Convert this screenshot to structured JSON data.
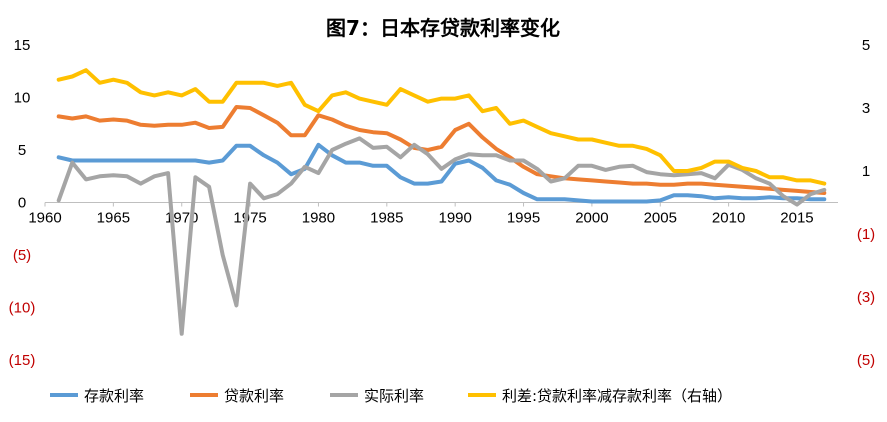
{
  "chart_data": {
    "type": "line",
    "title": "图7：日本存贷款利率变化",
    "x": [
      1961,
      1962,
      1963,
      1964,
      1965,
      1966,
      1967,
      1968,
      1969,
      1970,
      1971,
      1972,
      1973,
      1974,
      1975,
      1976,
      1977,
      1978,
      1979,
      1980,
      1981,
      1982,
      1983,
      1984,
      1985,
      1986,
      1987,
      1988,
      1989,
      1990,
      1991,
      1992,
      1993,
      1994,
      1995,
      1996,
      1997,
      1998,
      1999,
      2000,
      2001,
      2002,
      2003,
      2004,
      2005,
      2006,
      2007,
      2008,
      2009,
      2010,
      2011,
      2012,
      2013,
      2014,
      2015,
      2016,
      2017
    ],
    "xlim": [
      1960,
      2018
    ],
    "x_ticks": [
      1960,
      1965,
      1970,
      1975,
      1980,
      1985,
      1990,
      1995,
      2000,
      2005,
      2010,
      2015
    ],
    "x_tick_labels": [
      "1960",
      "1965",
      "1970",
      "1975",
      "1980",
      "1985",
      "1990",
      "1995",
      "2000",
      "2005",
      "2010",
      "2015"
    ],
    "ylim_left": [
      -15,
      15
    ],
    "y_ticks_left": [
      15,
      10,
      5,
      0,
      -5,
      -10,
      -15
    ],
    "y_tick_labels_left": [
      "15",
      "10",
      "5",
      "0",
      "(5)",
      "(10)",
      "(15)"
    ],
    "ylim_right": [
      -5,
      5
    ],
    "y_ticks_right": [
      5,
      3,
      1,
      -1,
      -3,
      -5
    ],
    "y_tick_labels_right": [
      "5",
      "3",
      "1",
      "(1)",
      "(3)",
      "(5)"
    ],
    "series": [
      {
        "name": "存款利率",
        "axis": "left",
        "color": "#5b9bd5",
        "values": [
          4.3,
          4.0,
          4.0,
          4.0,
          4.0,
          4.0,
          4.0,
          4.0,
          4.0,
          4.0,
          4.0,
          3.8,
          4.0,
          5.4,
          5.4,
          4.5,
          3.8,
          2.7,
          3.2,
          5.5,
          4.5,
          3.8,
          3.8,
          3.5,
          3.5,
          2.4,
          1.8,
          1.8,
          2.0,
          3.7,
          4.0,
          3.3,
          2.1,
          1.7,
          0.9,
          0.3,
          0.3,
          0.3,
          0.2,
          0.1,
          0.1,
          0.1,
          0.1,
          0.1,
          0.2,
          0.7,
          0.7,
          0.6,
          0.4,
          0.5,
          0.4,
          0.4,
          0.5,
          0.4,
          0.4,
          0.3,
          0.3
        ]
      },
      {
        "name": "贷款利率",
        "axis": "left",
        "color": "#ed7d31",
        "values": [
          8.2,
          8.0,
          8.2,
          7.8,
          7.9,
          7.8,
          7.4,
          7.3,
          7.4,
          7.4,
          7.6,
          7.1,
          7.2,
          9.1,
          9.0,
          8.3,
          7.6,
          6.4,
          6.4,
          8.3,
          7.9,
          7.3,
          6.9,
          6.7,
          6.6,
          6.0,
          5.2,
          5.0,
          5.3,
          6.9,
          7.5,
          6.2,
          5.1,
          4.3,
          3.4,
          2.7,
          2.5,
          2.3,
          2.2,
          2.1,
          2.0,
          1.9,
          1.8,
          1.8,
          1.7,
          1.7,
          1.8,
          1.8,
          1.7,
          1.6,
          1.5,
          1.4,
          1.3,
          1.2,
          1.1,
          1.0,
          0.9
        ]
      },
      {
        "name": "实际利率",
        "axis": "left",
        "color": "#a5a5a5",
        "values": [
          0.2,
          3.8,
          2.2,
          2.5,
          2.6,
          2.5,
          1.8,
          2.5,
          2.8,
          -12.5,
          2.4,
          1.5,
          -5.0,
          -9.8,
          1.8,
          0.4,
          0.8,
          1.8,
          3.4,
          2.8,
          5.0,
          5.6,
          6.1,
          5.2,
          5.3,
          4.3,
          5.5,
          4.6,
          3.2,
          4.1,
          4.6,
          4.5,
          4.5,
          4.0,
          4.0,
          3.2,
          2.0,
          2.3,
          3.5,
          3.5,
          3.1,
          3.4,
          3.5,
          2.9,
          2.7,
          2.6,
          2.7,
          2.8,
          2.3,
          3.6,
          3.1,
          2.3,
          1.8,
          0.6,
          -0.2,
          0.8,
          1.2
        ]
      },
      {
        "name": "利差:贷款利率减存款利率（右轴）",
        "axis": "right",
        "color": "#ffc000",
        "values": [
          3.9,
          4.0,
          4.2,
          3.8,
          3.9,
          3.8,
          3.5,
          3.4,
          3.5,
          3.4,
          3.6,
          3.2,
          3.2,
          3.8,
          3.8,
          3.8,
          3.7,
          3.8,
          3.1,
          2.9,
          3.4,
          3.5,
          3.3,
          3.2,
          3.1,
          3.6,
          3.4,
          3.2,
          3.3,
          3.3,
          3.4,
          2.9,
          3.0,
          2.5,
          2.6,
          2.4,
          2.2,
          2.1,
          2.0,
          2.0,
          1.9,
          1.8,
          1.8,
          1.7,
          1.5,
          1.0,
          1.0,
          1.1,
          1.3,
          1.3,
          1.1,
          1.0,
          0.8,
          0.8,
          0.7,
          0.7,
          0.6
        ]
      }
    ]
  }
}
